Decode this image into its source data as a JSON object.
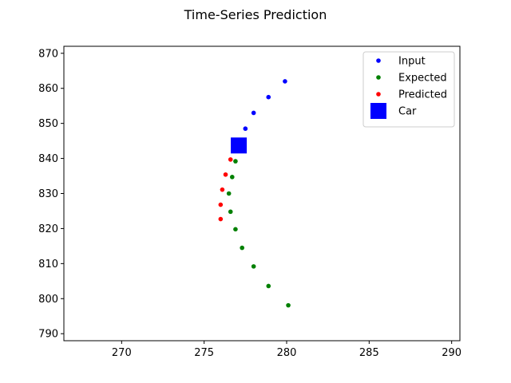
{
  "chart_data": {
    "type": "scatter",
    "title": "Time-Series Prediction",
    "xlabel": "",
    "ylabel": "",
    "xlim": [
      266.5,
      290.5
    ],
    "ylim": [
      788,
      872
    ],
    "x_ticks": [
      270,
      275,
      280,
      285,
      290
    ],
    "y_ticks": [
      790,
      800,
      810,
      820,
      830,
      840,
      850,
      860,
      870
    ],
    "grid": false,
    "legend_position": "top-right",
    "series": [
      {
        "name": "Input",
        "marker": "circle",
        "color": "#0000ff",
        "points": [
          {
            "x": 279.9,
            "y": 862.0
          },
          {
            "x": 278.9,
            "y": 857.5
          },
          {
            "x": 278.0,
            "y": 853.0
          },
          {
            "x": 277.5,
            "y": 848.5
          }
        ]
      },
      {
        "name": "Expected",
        "marker": "circle",
        "color": "#008000",
        "points": [
          {
            "x": 276.9,
            "y": 839.2
          },
          {
            "x": 276.7,
            "y": 834.7
          },
          {
            "x": 276.5,
            "y": 830.0
          },
          {
            "x": 276.6,
            "y": 824.8
          },
          {
            "x": 276.9,
            "y": 819.8
          },
          {
            "x": 277.3,
            "y": 814.5
          },
          {
            "x": 278.0,
            "y": 809.2
          },
          {
            "x": 278.9,
            "y": 803.6
          },
          {
            "x": 280.1,
            "y": 798.1
          }
        ]
      },
      {
        "name": "Predicted",
        "marker": "circle",
        "color": "#ff0000",
        "points": [
          {
            "x": 276.6,
            "y": 839.7
          },
          {
            "x": 276.3,
            "y": 835.4
          },
          {
            "x": 276.1,
            "y": 831.1
          },
          {
            "x": 276.0,
            "y": 826.8
          },
          {
            "x": 276.0,
            "y": 822.7
          }
        ]
      },
      {
        "name": "Car",
        "marker": "square",
        "color": "#0000ff",
        "points": [
          {
            "x": 277.1,
            "y": 843.7
          }
        ]
      }
    ]
  }
}
